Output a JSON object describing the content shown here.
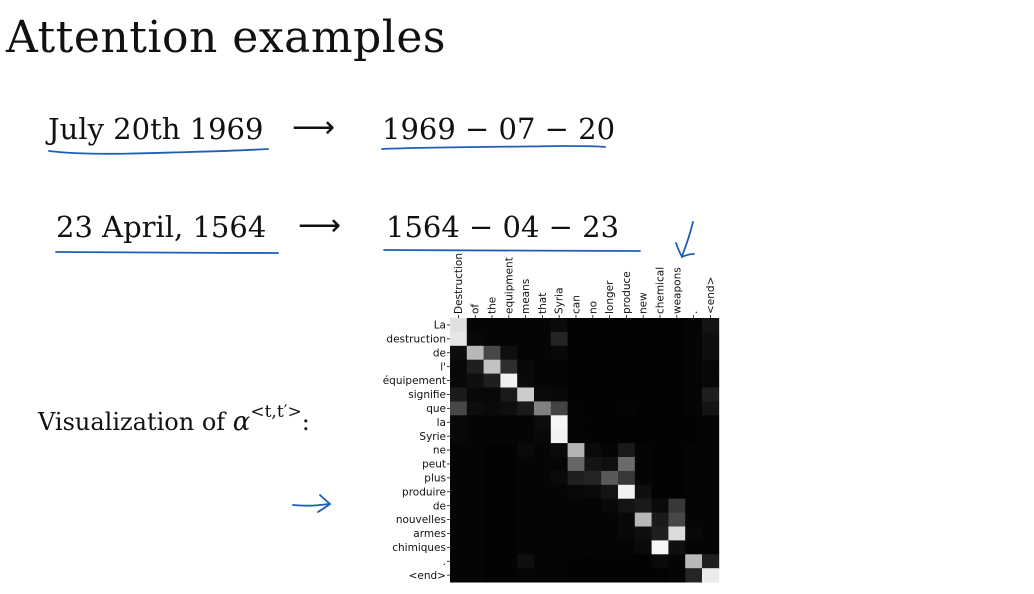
{
  "slide": {
    "title": "Attention examples",
    "examples": [
      {
        "input": "July 20th 1969",
        "arrow": "⟶",
        "output": "1969 − 07 − 20"
      },
      {
        "input": "23 April, 1564",
        "arrow": "⟶",
        "output": "1564 − 04 − 23"
      }
    ],
    "viz_label_prefix": "Visualization of ",
    "viz_label_symbol": "α",
    "viz_label_sup": "<t,t′>",
    "viz_label_suffix": ":"
  },
  "colors": {
    "annotation_ink": "#1f5fb8",
    "heatmap_dark": "#000000",
    "heatmap_light": "#ffffff"
  },
  "chart_data": {
    "type": "heatmap",
    "x_labels": [
      "Destruction",
      "of",
      "the",
      "equipment",
      "means",
      "that",
      "Syria",
      "can",
      "no",
      "longer",
      "produce",
      "new",
      "chemical",
      "weapons",
      ".",
      "<end>"
    ],
    "y_labels": [
      "La",
      "destruction",
      "de",
      "l'",
      "équipement",
      "signifie",
      "que",
      "la",
      "Syrie",
      "ne",
      "peut",
      "plus",
      "produire",
      "de",
      "nouvelles",
      "armes",
      "chimiques",
      ".",
      "<end>"
    ],
    "value_range": [
      0,
      1
    ],
    "values": [
      [
        0.88,
        0.02,
        0.02,
        0.02,
        0.02,
        0.02,
        0.04,
        0.01,
        0.01,
        0.01,
        0.01,
        0.01,
        0.01,
        0.01,
        0.02,
        0.08
      ],
      [
        0.9,
        0.03,
        0.02,
        0.02,
        0.02,
        0.02,
        0.14,
        0.01,
        0.01,
        0.01,
        0.01,
        0.01,
        0.01,
        0.01,
        0.02,
        0.06
      ],
      [
        0.05,
        0.72,
        0.28,
        0.06,
        0.02,
        0.02,
        0.03,
        0.01,
        0.01,
        0.01,
        0.01,
        0.01,
        0.01,
        0.01,
        0.02,
        0.06
      ],
      [
        0.03,
        0.12,
        0.76,
        0.18,
        0.03,
        0.02,
        0.02,
        0.01,
        0.01,
        0.01,
        0.01,
        0.01,
        0.01,
        0.01,
        0.02,
        0.03
      ],
      [
        0.03,
        0.06,
        0.12,
        0.94,
        0.04,
        0.02,
        0.02,
        0.01,
        0.01,
        0.01,
        0.01,
        0.01,
        0.01,
        0.01,
        0.02,
        0.03
      ],
      [
        0.1,
        0.03,
        0.03,
        0.1,
        0.8,
        0.04,
        0.03,
        0.01,
        0.01,
        0.01,
        0.01,
        0.01,
        0.01,
        0.01,
        0.02,
        0.12
      ],
      [
        0.28,
        0.05,
        0.04,
        0.06,
        0.1,
        0.5,
        0.26,
        0.02,
        0.01,
        0.01,
        0.02,
        0.01,
        0.01,
        0.01,
        0.02,
        0.08
      ],
      [
        0.03,
        0.02,
        0.02,
        0.02,
        0.02,
        0.05,
        0.96,
        0.02,
        0.01,
        0.01,
        0.01,
        0.01,
        0.01,
        0.01,
        0.01,
        0.02
      ],
      [
        0.03,
        0.02,
        0.02,
        0.02,
        0.02,
        0.03,
        0.95,
        0.02,
        0.01,
        0.01,
        0.01,
        0.01,
        0.01,
        0.01,
        0.01,
        0.02
      ],
      [
        0.02,
        0.02,
        0.01,
        0.01,
        0.04,
        0.02,
        0.04,
        0.7,
        0.04,
        0.02,
        0.1,
        0.02,
        0.01,
        0.01,
        0.02,
        0.02
      ],
      [
        0.02,
        0.02,
        0.01,
        0.01,
        0.02,
        0.02,
        0.02,
        0.4,
        0.08,
        0.06,
        0.42,
        0.02,
        0.01,
        0.01,
        0.02,
        0.02
      ],
      [
        0.02,
        0.02,
        0.01,
        0.01,
        0.02,
        0.02,
        0.04,
        0.12,
        0.14,
        0.35,
        0.22,
        0.02,
        0.01,
        0.01,
        0.02,
        0.02
      ],
      [
        0.02,
        0.02,
        0.01,
        0.01,
        0.02,
        0.02,
        0.02,
        0.03,
        0.04,
        0.08,
        0.95,
        0.06,
        0.01,
        0.01,
        0.02,
        0.02
      ],
      [
        0.02,
        0.02,
        0.01,
        0.01,
        0.02,
        0.02,
        0.02,
        0.02,
        0.02,
        0.03,
        0.08,
        0.1,
        0.04,
        0.22,
        0.02,
        0.02
      ],
      [
        0.02,
        0.02,
        0.01,
        0.01,
        0.02,
        0.02,
        0.02,
        0.02,
        0.02,
        0.02,
        0.03,
        0.72,
        0.1,
        0.28,
        0.02,
        0.02
      ],
      [
        0.02,
        0.02,
        0.01,
        0.01,
        0.02,
        0.02,
        0.02,
        0.02,
        0.02,
        0.02,
        0.03,
        0.06,
        0.12,
        0.86,
        0.03,
        0.02
      ],
      [
        0.02,
        0.02,
        0.01,
        0.01,
        0.02,
        0.02,
        0.02,
        0.02,
        0.02,
        0.02,
        0.02,
        0.04,
        0.96,
        0.06,
        0.02,
        0.02
      ],
      [
        0.02,
        0.02,
        0.01,
        0.01,
        0.06,
        0.02,
        0.02,
        0.01,
        0.01,
        0.01,
        0.01,
        0.01,
        0.04,
        0.02,
        0.72,
        0.12
      ],
      [
        0.02,
        0.02,
        0.01,
        0.01,
        0.02,
        0.02,
        0.02,
        0.01,
        0.01,
        0.01,
        0.01,
        0.01,
        0.01,
        0.02,
        0.14,
        0.92
      ]
    ]
  }
}
